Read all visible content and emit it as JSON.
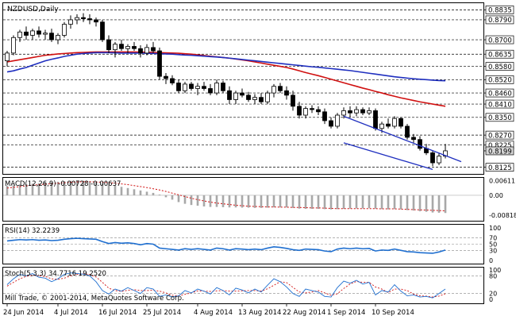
{
  "chart_data": [
    {
      "type": "candlestick",
      "panel": "price",
      "title": "NZDUSD,Daily",
      "ylim": [
        0.8095,
        0.8865
      ],
      "y_ticks": [
        "0.8835",
        "0.8790",
        "0.8700",
        "0.8635",
        "0.8580",
        "0.8520",
        "0.8460",
        "0.8410",
        "0.8350",
        "0.8270",
        "0.8225",
        "0.8199",
        "0.8125"
      ],
      "current_price": "0.8199",
      "horizontal_levels": [
        0.8835,
        0.879,
        0.87,
        0.8635,
        0.858,
        0.852,
        0.846,
        0.841,
        0.835,
        0.827,
        0.8225,
        0.8125
      ],
      "candles": [
        {
          "o": 0.8605,
          "h": 0.865,
          "l": 0.858,
          "c": 0.864
        },
        {
          "o": 0.864,
          "h": 0.872,
          "l": 0.863,
          "c": 0.871
        },
        {
          "o": 0.871,
          "h": 0.8745,
          "l": 0.869,
          "c": 0.8735
        },
        {
          "o": 0.8735,
          "h": 0.876,
          "l": 0.87,
          "c": 0.872
        },
        {
          "o": 0.872,
          "h": 0.875,
          "l": 0.87,
          "c": 0.874
        },
        {
          "o": 0.874,
          "h": 0.876,
          "l": 0.871,
          "c": 0.8725
        },
        {
          "o": 0.8725,
          "h": 0.8745,
          "l": 0.87,
          "c": 0.873
        },
        {
          "o": 0.873,
          "h": 0.875,
          "l": 0.869,
          "c": 0.87
        },
        {
          "o": 0.87,
          "h": 0.873,
          "l": 0.868,
          "c": 0.872
        },
        {
          "o": 0.872,
          "h": 0.878,
          "l": 0.871,
          "c": 0.877
        },
        {
          "o": 0.877,
          "h": 0.881,
          "l": 0.875,
          "c": 0.879
        },
        {
          "o": 0.879,
          "h": 0.8815,
          "l": 0.877,
          "c": 0.88
        },
        {
          "o": 0.88,
          "h": 0.882,
          "l": 0.878,
          "c": 0.8795
        },
        {
          "o": 0.8795,
          "h": 0.8815,
          "l": 0.877,
          "c": 0.879
        },
        {
          "o": 0.879,
          "h": 0.88,
          "l": 0.876,
          "c": 0.878
        },
        {
          "o": 0.878,
          "h": 0.879,
          "l": 0.869,
          "c": 0.87
        },
        {
          "o": 0.87,
          "h": 0.872,
          "l": 0.864,
          "c": 0.8655
        },
        {
          "o": 0.8655,
          "h": 0.869,
          "l": 0.862,
          "c": 0.868
        },
        {
          "o": 0.868,
          "h": 0.87,
          "l": 0.865,
          "c": 0.866
        },
        {
          "o": 0.866,
          "h": 0.868,
          "l": 0.864,
          "c": 0.867
        },
        {
          "o": 0.867,
          "h": 0.869,
          "l": 0.865,
          "c": 0.866
        },
        {
          "o": 0.866,
          "h": 0.8675,
          "l": 0.862,
          "c": 0.864
        },
        {
          "o": 0.864,
          "h": 0.868,
          "l": 0.863,
          "c": 0.8665
        },
        {
          "o": 0.8665,
          "h": 0.869,
          "l": 0.864,
          "c": 0.865
        },
        {
          "o": 0.865,
          "h": 0.8665,
          "l": 0.852,
          "c": 0.8535
        },
        {
          "o": 0.8535,
          "h": 0.855,
          "l": 0.85,
          "c": 0.8525
        },
        {
          "o": 0.8525,
          "h": 0.854,
          "l": 0.8495,
          "c": 0.8505
        },
        {
          "o": 0.8505,
          "h": 0.852,
          "l": 0.846,
          "c": 0.847
        },
        {
          "o": 0.847,
          "h": 0.851,
          "l": 0.846,
          "c": 0.85
        },
        {
          "o": 0.85,
          "h": 0.851,
          "l": 0.847,
          "c": 0.848
        },
        {
          "o": 0.848,
          "h": 0.8505,
          "l": 0.845,
          "c": 0.849
        },
        {
          "o": 0.849,
          "h": 0.851,
          "l": 0.847,
          "c": 0.848
        },
        {
          "o": 0.848,
          "h": 0.85,
          "l": 0.845,
          "c": 0.846
        },
        {
          "o": 0.846,
          "h": 0.852,
          "l": 0.845,
          "c": 0.8505
        },
        {
          "o": 0.8505,
          "h": 0.8515,
          "l": 0.846,
          "c": 0.847
        },
        {
          "o": 0.847,
          "h": 0.849,
          "l": 0.841,
          "c": 0.843
        },
        {
          "o": 0.843,
          "h": 0.847,
          "l": 0.841,
          "c": 0.846
        },
        {
          "o": 0.846,
          "h": 0.848,
          "l": 0.844,
          "c": 0.845
        },
        {
          "o": 0.845,
          "h": 0.8465,
          "l": 0.842,
          "c": 0.843
        },
        {
          "o": 0.843,
          "h": 0.8455,
          "l": 0.841,
          "c": 0.844
        },
        {
          "o": 0.844,
          "h": 0.846,
          "l": 0.841,
          "c": 0.842
        },
        {
          "o": 0.842,
          "h": 0.847,
          "l": 0.841,
          "c": 0.846
        },
        {
          "o": 0.846,
          "h": 0.85,
          "l": 0.844,
          "c": 0.849
        },
        {
          "o": 0.849,
          "h": 0.8505,
          "l": 0.846,
          "c": 0.847
        },
        {
          "o": 0.847,
          "h": 0.849,
          "l": 0.843,
          "c": 0.845
        },
        {
          "o": 0.845,
          "h": 0.847,
          "l": 0.838,
          "c": 0.84
        },
        {
          "o": 0.84,
          "h": 0.842,
          "l": 0.8345,
          "c": 0.836
        },
        {
          "o": 0.836,
          "h": 0.84,
          "l": 0.8345,
          "c": 0.839
        },
        {
          "o": 0.839,
          "h": 0.8405,
          "l": 0.837,
          "c": 0.8385
        },
        {
          "o": 0.8385,
          "h": 0.84,
          "l": 0.836,
          "c": 0.8375
        },
        {
          "o": 0.8375,
          "h": 0.839,
          "l": 0.832,
          "c": 0.8335
        },
        {
          "o": 0.8335,
          "h": 0.835,
          "l": 0.83,
          "c": 0.831
        },
        {
          "o": 0.831,
          "h": 0.837,
          "l": 0.83,
          "c": 0.836
        },
        {
          "o": 0.836,
          "h": 0.8395,
          "l": 0.8345,
          "c": 0.838
        },
        {
          "o": 0.838,
          "h": 0.84,
          "l": 0.835,
          "c": 0.837
        },
        {
          "o": 0.837,
          "h": 0.84,
          "l": 0.8355,
          "c": 0.8385
        },
        {
          "o": 0.8385,
          "h": 0.8395,
          "l": 0.836,
          "c": 0.837
        },
        {
          "o": 0.837,
          "h": 0.8395,
          "l": 0.836,
          "c": 0.838
        },
        {
          "o": 0.838,
          "h": 0.839,
          "l": 0.829,
          "c": 0.83
        },
        {
          "o": 0.83,
          "h": 0.833,
          "l": 0.828,
          "c": 0.832
        },
        {
          "o": 0.832,
          "h": 0.8345,
          "l": 0.83,
          "c": 0.831
        },
        {
          "o": 0.831,
          "h": 0.8355,
          "l": 0.83,
          "c": 0.8345
        },
        {
          "o": 0.8345,
          "h": 0.835,
          "l": 0.83,
          "c": 0.831
        },
        {
          "o": 0.831,
          "h": 0.832,
          "l": 0.825,
          "c": 0.826
        },
        {
          "o": 0.826,
          "h": 0.8275,
          "l": 0.8235,
          "c": 0.825
        },
        {
          "o": 0.825,
          "h": 0.8265,
          "l": 0.82,
          "c": 0.821
        },
        {
          "o": 0.821,
          "h": 0.823,
          "l": 0.818,
          "c": 0.819
        },
        {
          "o": 0.819,
          "h": 0.82,
          "l": 0.813,
          "c": 0.8145
        },
        {
          "o": 0.8145,
          "h": 0.819,
          "l": 0.8135,
          "c": 0.8175
        },
        {
          "o": 0.8175,
          "h": 0.823,
          "l": 0.8165,
          "c": 0.8199
        }
      ],
      "ma_fast": {
        "color": "#1f2fbf",
        "values": [
          0.8555,
          0.856,
          0.8568,
          0.8575,
          0.8585,
          0.8595,
          0.8605,
          0.8612,
          0.8618,
          0.8625,
          0.863,
          0.8635,
          0.8638,
          0.864,
          0.8642,
          0.8642,
          0.8642,
          0.8641,
          0.864,
          0.864,
          0.864,
          0.864,
          0.8639,
          0.8638,
          0.8637,
          0.8636,
          0.8635,
          0.8633,
          0.8631,
          0.863,
          0.8628,
          0.8626,
          0.8624,
          0.8622,
          0.862,
          0.8617,
          0.8614,
          0.8611,
          0.8608,
          0.8605,
          0.8602,
          0.8599,
          0.8596,
          0.8593,
          0.859,
          0.8587,
          0.8584,
          0.8581,
          0.8578,
          0.8576,
          0.8573,
          0.857,
          0.8567,
          0.8564,
          0.8561,
          0.8557,
          0.8553,
          0.8549,
          0.8545,
          0.8541,
          0.8537,
          0.8533,
          0.853,
          0.8527,
          0.8524,
          0.8522,
          0.852,
          0.8518,
          0.8516,
          0.8515
        ]
      },
      "ma_slow": {
        "color": "#d01010",
        "values": [
          0.86,
          0.8605,
          0.861,
          0.8615,
          0.862,
          0.8625,
          0.863,
          0.8633,
          0.8636,
          0.8638,
          0.864,
          0.8642,
          0.8643,
          0.8644,
          0.8645,
          0.8645,
          0.8645,
          0.8645,
          0.8645,
          0.8645,
          0.8645,
          0.8644,
          0.8644,
          0.8643,
          0.8642,
          0.8641,
          0.864,
          0.8639,
          0.8637,
          0.8635,
          0.8632,
          0.8629,
          0.8626,
          0.8623,
          0.862,
          0.8617,
          0.8613,
          0.8609,
          0.8605,
          0.86,
          0.8595,
          0.859,
          0.8585,
          0.858,
          0.8575,
          0.8568,
          0.856,
          0.8552,
          0.8545,
          0.8538,
          0.853,
          0.8522,
          0.8514,
          0.8506,
          0.8498,
          0.849,
          0.8482,
          0.8475,
          0.8467,
          0.846,
          0.8452,
          0.8445,
          0.8438,
          0.8432,
          0.8426,
          0.842,
          0.8415,
          0.841,
          0.8405,
          0.84
        ]
      },
      "channel_lines": [
        {
          "from": {
            "index": 53,
            "y": 0.8355
          },
          "to": {
            "index": 71.5,
            "y": 0.815
          }
        },
        {
          "from": {
            "index": 53,
            "y": 0.8235
          },
          "to": {
            "index": 67,
            "y": 0.8115
          }
        }
      ]
    },
    {
      "type": "bar",
      "panel": "macd",
      "title": "MACD(12,26,9) -0.00728 -0.00637",
      "y_ticks": [
        "0.00611",
        "0.00",
        "-0.00818"
      ],
      "ylim": [
        -0.0105,
        0.0072
      ],
      "histogram": [
        0.004,
        0.0042,
        0.0044,
        0.0046,
        0.0048,
        0.005,
        0.0052,
        0.0054,
        0.0056,
        0.0058,
        0.006,
        0.0061,
        0.006,
        0.0058,
        0.0055,
        0.005,
        0.0045,
        0.004,
        0.0035,
        0.003,
        0.0025,
        0.002,
        0.0015,
        0.001,
        0.0003,
        -0.0008,
        -0.0018,
        -0.0028,
        -0.0035,
        -0.004,
        -0.0043,
        -0.0046,
        -0.0048,
        -0.0048,
        -0.0049,
        -0.005,
        -0.005,
        -0.0051,
        -0.0051,
        -0.0052,
        -0.0052,
        -0.0051,
        -0.005,
        -0.005,
        -0.005,
        -0.0052,
        -0.0055,
        -0.0056,
        -0.0056,
        -0.0056,
        -0.0057,
        -0.0058,
        -0.0057,
        -0.0056,
        -0.0055,
        -0.0054,
        -0.0054,
        -0.0053,
        -0.0055,
        -0.0057,
        -0.0058,
        -0.0057,
        -0.0058,
        -0.0061,
        -0.0063,
        -0.0066,
        -0.0068,
        -0.0071,
        -0.0072,
        -0.0073
      ],
      "signal": [
        0.003,
        0.0033,
        0.0036,
        0.0039,
        0.0042,
        0.0044,
        0.0046,
        0.0048,
        0.005,
        0.0052,
        0.0054,
        0.0055,
        0.0056,
        0.0056,
        0.0055,
        0.0054,
        0.0052,
        0.005,
        0.0047,
        0.0044,
        0.004,
        0.0036,
        0.0032,
        0.0027,
        0.0022,
        0.0016,
        0.0009,
        0.0002,
        -0.0005,
        -0.0012,
        -0.0018,
        -0.0023,
        -0.0028,
        -0.0032,
        -0.0035,
        -0.0038,
        -0.0041,
        -0.0043,
        -0.0045,
        -0.0046,
        -0.0047,
        -0.0048,
        -0.0048,
        -0.0049,
        -0.0049,
        -0.005,
        -0.005,
        -0.0051,
        -0.0052,
        -0.0052,
        -0.0053,
        -0.0054,
        -0.0055,
        -0.0055,
        -0.0055,
        -0.0055,
        -0.0055,
        -0.0055,
        -0.0055,
        -0.0056,
        -0.0056,
        -0.0056,
        -0.0057,
        -0.0058,
        -0.0059,
        -0.006,
        -0.0061,
        -0.0062,
        -0.0063,
        -0.0064
      ],
      "signal_color": "#d01010",
      "bar_color": "#a8a8a8"
    },
    {
      "type": "line",
      "panel": "rsi",
      "title": "RSI(14) 32.2239",
      "y_ticks": [
        "100",
        "70",
        "50",
        "30",
        "0"
      ],
      "ylim": [
        0,
        100
      ],
      "levels": [
        70,
        50,
        30
      ],
      "color": "#1f6fd0",
      "values": [
        60,
        62,
        64,
        63,
        64,
        62,
        63,
        61,
        62,
        65,
        67,
        68,
        67,
        66,
        65,
        58,
        52,
        55,
        53,
        54,
        52,
        48,
        52,
        50,
        38,
        36,
        34,
        32,
        36,
        34,
        36,
        34,
        32,
        38,
        36,
        32,
        36,
        35,
        33,
        35,
        33,
        38,
        42,
        40,
        37,
        33,
        31,
        35,
        34,
        33,
        29,
        27,
        35,
        38,
        36,
        38,
        36,
        37,
        29,
        32,
        31,
        35,
        31,
        27,
        26,
        24,
        23,
        22,
        26,
        32
      ]
    },
    {
      "type": "line",
      "panel": "stochastic",
      "title": "Stoch(5,3,3) 34.7716 19.2520",
      "y_ticks": [
        "100",
        "80",
        "20",
        "0"
      ],
      "ylim": [
        0,
        100
      ],
      "levels": [
        80,
        20
      ],
      "k_color": "#1f6fd0",
      "d_color": "#d01010",
      "k": [
        50,
        70,
        85,
        80,
        88,
        75,
        72,
        60,
        70,
        85,
        90,
        88,
        86,
        80,
        60,
        30,
        18,
        35,
        28,
        40,
        30,
        20,
        40,
        35,
        10,
        15,
        8,
        12,
        30,
        22,
        35,
        28,
        18,
        40,
        30,
        15,
        38,
        32,
        22,
        35,
        25,
        48,
        70,
        60,
        42,
        20,
        10,
        35,
        30,
        25,
        10,
        8,
        40,
        62,
        55,
        65,
        52,
        58,
        15,
        30,
        25,
        50,
        28,
        12,
        15,
        8,
        10,
        5,
        20,
        35
      ],
      "d": [
        45,
        58,
        70,
        78,
        82,
        80,
        78,
        70,
        68,
        72,
        80,
        85,
        87,
        85,
        76,
        58,
        38,
        30,
        27,
        31,
        33,
        30,
        30,
        31,
        28,
        22,
        14,
        12,
        17,
        22,
        29,
        28,
        27,
        29,
        30,
        28,
        28,
        29,
        30,
        30,
        28,
        36,
        48,
        60,
        57,
        41,
        25,
        22,
        25,
        30,
        22,
        14,
        19,
        37,
        52,
        61,
        58,
        58,
        42,
        35,
        23,
        35,
        35,
        30,
        18,
        12,
        11,
        8,
        11,
        19
      ]
    }
  ],
  "x_labels": [
    "24 Jun 2014",
    "4 Jul 2014",
    "16 Jul 2014",
    "25 Jul 2014",
    "4 Aug 2014",
    "13 Aug 2014",
    "22 Aug 2014",
    "1 Sep 2014",
    "10 Sep 2014"
  ],
  "watermark": "Mill Trade, © 2001-2014, MetaQuotes Software Corp."
}
